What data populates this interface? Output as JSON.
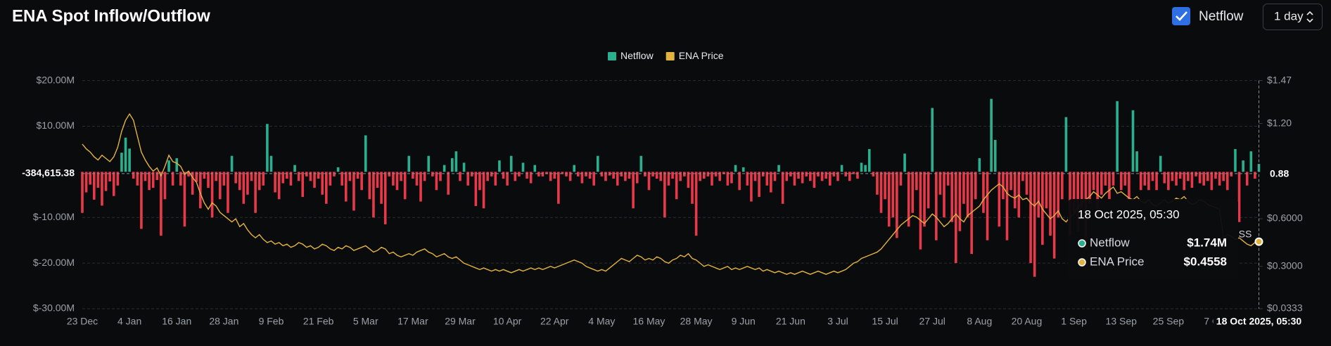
{
  "title": "ENA Spot Inflow/Outflow",
  "controls": {
    "checkbox_label": "Netflow",
    "interval": "1 day"
  },
  "chart_data": {
    "type": "bar_line",
    "categories": [
      "23 Dec",
      null,
      null,
      null,
      null,
      null,
      null,
      null,
      null,
      null,
      null,
      null,
      "4 Jan",
      null,
      null,
      null,
      null,
      null,
      null,
      null,
      null,
      null,
      null,
      null,
      "16 Jan",
      null,
      null,
      null,
      null,
      null,
      null,
      null,
      null,
      null,
      null,
      null,
      "28 Jan",
      null,
      null,
      null,
      null,
      null,
      null,
      null,
      null,
      null,
      null,
      null,
      "9 Feb",
      null,
      null,
      null,
      null,
      null,
      null,
      null,
      null,
      null,
      null,
      null,
      "21 Feb",
      null,
      null,
      null,
      null,
      null,
      null,
      null,
      null,
      null,
      null,
      null,
      "5 Mar",
      null,
      null,
      null,
      null,
      null,
      null,
      null,
      null,
      null,
      null,
      null,
      "17 Mar",
      null,
      null,
      null,
      null,
      null,
      null,
      null,
      null,
      null,
      null,
      null,
      "29 Mar",
      null,
      null,
      null,
      null,
      null,
      null,
      null,
      null,
      null,
      null,
      null,
      "10 Apr",
      null,
      null,
      null,
      null,
      null,
      null,
      null,
      null,
      null,
      null,
      null,
      "22 Apr",
      null,
      null,
      null,
      null,
      null,
      null,
      null,
      null,
      null,
      null,
      null,
      "4 May",
      null,
      null,
      null,
      null,
      null,
      null,
      null,
      null,
      null,
      null,
      null,
      "16 May",
      null,
      null,
      null,
      null,
      null,
      null,
      null,
      null,
      null,
      null,
      null,
      "28 May",
      null,
      null,
      null,
      null,
      null,
      null,
      null,
      null,
      null,
      null,
      null,
      "9 Jun",
      null,
      null,
      null,
      null,
      null,
      null,
      null,
      null,
      null,
      null,
      null,
      "21 Jun",
      null,
      null,
      null,
      null,
      null,
      null,
      null,
      null,
      null,
      null,
      null,
      "3 Jul",
      null,
      null,
      null,
      null,
      null,
      null,
      null,
      null,
      null,
      null,
      null,
      "15 Jul",
      null,
      null,
      null,
      null,
      null,
      null,
      null,
      null,
      null,
      null,
      null,
      "27 Jul",
      null,
      null,
      null,
      null,
      null,
      null,
      null,
      null,
      null,
      null,
      null,
      "8 Aug",
      null,
      null,
      null,
      null,
      null,
      null,
      null,
      null,
      null,
      null,
      null,
      "20 Aug",
      null,
      null,
      null,
      null,
      null,
      null,
      null,
      null,
      null,
      null,
      null,
      "1 Sep",
      null,
      null,
      null,
      null,
      null,
      null,
      null,
      null,
      null,
      null,
      null,
      "13 Sep",
      null,
      null,
      null,
      null,
      null,
      null,
      null,
      null,
      null,
      null,
      null,
      "25 Sep",
      null,
      null,
      null,
      null,
      null,
      null,
      null,
      null,
      null,
      null,
      null,
      "7 Oct",
      null,
      null,
      null,
      null,
      null,
      null,
      null,
      null,
      null,
      null,
      null
    ],
    "series": [
      {
        "name": "Netflow",
        "color": "#2bb08f",
        "negative_color": "#e8394a",
        "values": [
          -9000000.0,
          -4500000.0,
          -2800000.0,
          -6100000.0,
          -3500000.0,
          -7400000.0,
          -4200000.0,
          -2100000.0,
          -5300000.0,
          -3000000.0,
          4200000.0,
          7500000.0,
          5100000.0,
          -1500000.0,
          -3000000.0,
          -12500000.0,
          -2000000.0,
          -4000000.0,
          -3500000.0,
          -1800000.0,
          -14000000.0,
          -6000000.0,
          2500000.0,
          -3000000.0,
          3000000.0,
          -3000000.0,
          -12000000.0,
          -1000000.0,
          -5000000.0,
          -2200000.0,
          -8000000.0,
          -1500000.0,
          -3500000.0,
          -10000000.0,
          -2000000.0,
          -6000000.0,
          -3000000.0,
          -9000000.0,
          3500000.0,
          -2500000.0,
          -4000000.0,
          -7000000.0,
          -5000000.0,
          -2000000.0,
          -9000000.0,
          -4000000.0,
          -3000000.0,
          10500000.0,
          3500000.0,
          -4500000.0,
          -6000000.0,
          -2500000.0,
          -1500000.0,
          -3000000.0,
          1500000.0,
          -2000000.0,
          -5500000.0,
          -1000000.0,
          -2000000.0,
          -3500000.0,
          -1500000.0,
          -5000000.0,
          -7000000.0,
          -3000000.0,
          -1000000.0,
          1000000.0,
          -3000000.0,
          -6500000.0,
          -2000000.0,
          -8500000.0,
          -1500000.0,
          -4000000.0,
          8000000.0,
          -6000000.0,
          -10000000.0,
          -3500000.0,
          -7000000.0,
          -11500000.0,
          -1000000.0,
          -3000000.0,
          -4000000.0,
          -2000000.0,
          -6000000.0,
          3500000.0,
          -1500000.0,
          -3000000.0,
          -6500000.0,
          -2000000.0,
          3500000.0,
          -1000000.0,
          -4000000.0,
          -2000000.0,
          1500000.0,
          -5000000.0,
          3000000.0,
          4500000.0,
          -2000000.0,
          2000000.0,
          -3000000.0,
          -1000000.0,
          -7500000.0,
          -4000000.0,
          -8000000.0,
          -2000000.0,
          -1000000.0,
          -3000000.0,
          2500000.0,
          -1500000.0,
          -3000000.0,
          3500000.0,
          -2000000.0,
          -1000000.0,
          2000000.0,
          -1500000.0,
          -2500000.0,
          1500000.0,
          -1000000.0,
          -1000000.0,
          -500000.0,
          -2000000.0,
          -1500000.0,
          -7000000.0,
          -500000.0,
          -1000000.0,
          -2000000.0,
          1500000.0,
          -1000000.0,
          -2500000.0,
          -1000000.0,
          -1500000.0,
          -3000000.0,
          3500000.0,
          -1000000.0,
          -2000000.0,
          -800000.0,
          -1500000.0,
          -3000000.0,
          -1000000.0,
          -2000000.0,
          -1500000.0,
          -8000000.0,
          -2500000.0,
          3500000.0,
          -1000000.0,
          -4000000.0,
          -1000000.0,
          -1500000.0,
          -2000000.0,
          -10000000.0,
          -3000000.0,
          -1500000.0,
          -6000000.0,
          -2000000.0,
          -1000000.0,
          -3500000.0,
          -7000000.0,
          -14000000.0,
          -2000000.0,
          -1500000.0,
          -1000000.0,
          -3000000.0,
          -1000000.0,
          -2000000.0,
          -500000.0,
          -3000000.0,
          -2500000.0,
          1500000.0,
          -4000000.0,
          1000000.0,
          -3000000.0,
          -6500000.0,
          -2000000.0,
          -5500000.0,
          -1000000.0,
          -3000000.0,
          -4500000.0,
          -2000000.0,
          1500000.0,
          -7000000.0,
          -2000000.0,
          -1000000.0,
          -3000000.0,
          -1500000.0,
          -2500000.0,
          -1000000.0,
          -2000000.0,
          -3500000.0,
          -1000000.0,
          -2000000.0,
          -1500000.0,
          -3000000.0,
          -1000000.0,
          -2000000.0,
          1500000.0,
          -1000000.0,
          -2000000.0,
          -500000.0,
          -1500000.0,
          2000000.0,
          1500000.0,
          5000000.0,
          -1000000.0,
          -5000000.0,
          -9000000.0,
          -6000000.0,
          -12000000.0,
          -10000000.0,
          -14500000.0,
          -3000000.0,
          4000000.0,
          -12000000.0,
          -9000000.0,
          -4000000.0,
          -17000000.0,
          -12000000.0,
          -8000000.0,
          14000000.0,
          -15000000.0,
          -5000000.0,
          -10000000.0,
          -3000000.0,
          -11000000.0,
          -20000000.0,
          -13000000.0,
          -7000000.0,
          -10000000.0,
          -18000000.0,
          -6000000.0,
          3000000.0,
          -9000000.0,
          -15000000.0,
          16000000.0,
          7000000.0,
          -12000000.0,
          -6000000.0,
          -15000000.0,
          -4000000.0,
          -8000000.0,
          -10000000.0,
          -2000000.0,
          -5000000.0,
          -20000000.0,
          -23000000.0,
          -10000000.0,
          -16000000.0,
          -8000000.0,
          -14000000.0,
          -19000000.0,
          -10000000.0,
          -6000000.0,
          12000000.0,
          -14000000.0,
          -9000000.0,
          -13000000.0,
          -8000000.0,
          -17000000.0,
          -7000000.0,
          -4000000.0,
          -10000000.0,
          -5000000.0,
          -3000000.0,
          -6000000.0,
          -3000000.0,
          15500000.0,
          -4000000.0,
          -3000000.0,
          -6000000.0,
          13500000.0,
          4500000.0,
          -4000000.0,
          -3000000.0,
          -4000000.0,
          -2000000.0,
          -4000000.0,
          3500000.0,
          -2500000.0,
          -4000000.0,
          -2000000.0,
          -3000000.0,
          -1500000.0,
          -4000000.0,
          -2000000.0,
          -3500000.0,
          -1000000.0,
          -2500000.0,
          -3000000.0,
          -2000000.0,
          -4000000.0,
          -1500000.0,
          -3000000.0,
          -2000000.0,
          -4000000.0,
          -1000000.0,
          5000000.0,
          -11000000.0,
          2500000.0,
          -3000000.0,
          4500000.0,
          -1500000.0,
          1740000.0
        ]
      },
      {
        "name": "ENA Price",
        "color": "#e3b341",
        "axis": "y2",
        "values": [
          1.07,
          1.04,
          1.02,
          0.99,
          0.97,
          1.0,
          0.98,
          0.96,
          0.99,
          1.05,
          1.15,
          1.22,
          1.26,
          1.22,
          1.12,
          1.02,
          0.97,
          0.93,
          0.9,
          0.92,
          0.87,
          0.93,
          1.0,
          0.96,
          0.95,
          0.93,
          0.88,
          0.9,
          0.86,
          0.83,
          0.76,
          0.7,
          0.66,
          0.7,
          0.68,
          0.64,
          0.62,
          0.6,
          0.58,
          0.6,
          0.55,
          0.57,
          0.53,
          0.5,
          0.48,
          0.5,
          0.47,
          0.45,
          0.46,
          0.44,
          0.45,
          0.43,
          0.44,
          0.42,
          0.43,
          0.45,
          0.44,
          0.42,
          0.43,
          0.41,
          0.42,
          0.44,
          0.43,
          0.41,
          0.4,
          0.42,
          0.41,
          0.43,
          0.42,
          0.4,
          0.41,
          0.42,
          0.43,
          0.41,
          0.39,
          0.4,
          0.42,
          0.41,
          0.38,
          0.39,
          0.37,
          0.36,
          0.37,
          0.38,
          0.37,
          0.39,
          0.4,
          0.41,
          0.39,
          0.38,
          0.36,
          0.37,
          0.38,
          0.36,
          0.35,
          0.36,
          0.34,
          0.32,
          0.31,
          0.3,
          0.29,
          0.28,
          0.29,
          0.28,
          0.27,
          0.28,
          0.27,
          0.28,
          0.27,
          0.26,
          0.27,
          0.28,
          0.27,
          0.28,
          0.29,
          0.28,
          0.29,
          0.28,
          0.29,
          0.3,
          0.29,
          0.3,
          0.31,
          0.32,
          0.33,
          0.34,
          0.33,
          0.32,
          0.3,
          0.29,
          0.28,
          0.27,
          0.28,
          0.27,
          0.29,
          0.31,
          0.33,
          0.35,
          0.34,
          0.33,
          0.35,
          0.37,
          0.36,
          0.34,
          0.35,
          0.34,
          0.36,
          0.35,
          0.33,
          0.32,
          0.34,
          0.35,
          0.37,
          0.36,
          0.38,
          0.35,
          0.34,
          0.32,
          0.3,
          0.31,
          0.3,
          0.29,
          0.28,
          0.29,
          0.3,
          0.28,
          0.29,
          0.28,
          0.29,
          0.3,
          0.29,
          0.28,
          0.29,
          0.27,
          0.28,
          0.27,
          0.26,
          0.27,
          0.26,
          0.25,
          0.26,
          0.25,
          0.26,
          0.27,
          0.26,
          0.25,
          0.26,
          0.27,
          0.26,
          0.25,
          0.26,
          0.27,
          0.26,
          0.27,
          0.28,
          0.3,
          0.32,
          0.33,
          0.35,
          0.36,
          0.37,
          0.38,
          0.39,
          0.41,
          0.44,
          0.47,
          0.5,
          0.53,
          0.56,
          0.58,
          0.6,
          0.62,
          0.61,
          0.59,
          0.57,
          0.6,
          0.63,
          0.61,
          0.58,
          0.55,
          0.57,
          0.6,
          0.63,
          0.6,
          0.58,
          0.62,
          0.64,
          0.66,
          0.68,
          0.72,
          0.75,
          0.78,
          0.8,
          0.82,
          0.8,
          0.76,
          0.74,
          0.73,
          0.75,
          0.72,
          0.73,
          0.7,
          0.68,
          0.71,
          0.66,
          0.63,
          0.6,
          0.62,
          0.65,
          0.6,
          0.58,
          0.61,
          0.63,
          0.67,
          0.7,
          0.72,
          0.74,
          0.77,
          0.75,
          0.73,
          0.76,
          0.78,
          0.8,
          0.76,
          0.77,
          0.75,
          0.73,
          0.72,
          0.74,
          0.71,
          0.7,
          0.72,
          0.69,
          0.68,
          0.7,
          0.72,
          0.7,
          0.71,
          0.73,
          0.72,
          0.74,
          0.71,
          0.69,
          0.7,
          0.72,
          0.71,
          0.69,
          0.68,
          0.67,
          0.66,
          0.48,
          0.5,
          0.49,
          0.47,
          0.48,
          0.46,
          0.44,
          0.43,
          0.45,
          0.4558
        ]
      }
    ],
    "ylim": [
      -30000000,
      20000000
    ],
    "yticks": [
      {
        "value": -30000000,
        "label": "$-30.00M"
      },
      {
        "value": -20000000,
        "label": "$-20.00M"
      },
      {
        "value": -10000000,
        "label": "$-10.00M"
      },
      {
        "value": 10000000,
        "label": "$10.00M"
      },
      {
        "value": 20000000,
        "label": "$20.00M"
      }
    ],
    "y2lim": [
      0.0333,
      1.47
    ],
    "y2ticks": [
      {
        "value": 0.0333,
        "label": "$0.0333"
      },
      {
        "value": 0.3,
        "label": "$0.3000"
      },
      {
        "value": 0.6,
        "label": "$0.6000"
      },
      {
        "value": 1.2,
        "label": "$1.20"
      },
      {
        "value": 1.47,
        "label": "$1.47"
      }
    ],
    "grid": true,
    "crosshair": {
      "x_label": "18 Oct 2025, 05:30",
      "y": {
        "value": -384615.38,
        "label": "-384,615.38"
      },
      "y2": 0.88
    },
    "tooltip": {
      "title": "18 Oct 2025, 05:30",
      "items": [
        {
          "name": "Netflow",
          "value": "$1.74M"
        },
        {
          "name": "ENA Price",
          "value": "$0.4558"
        }
      ]
    },
    "annotation": "SS"
  }
}
